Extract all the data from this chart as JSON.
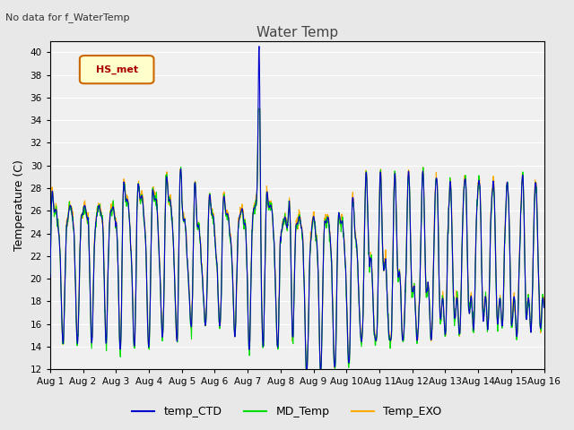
{
  "title": "Water Temp",
  "subtitle": "No data for f_WaterTemp",
  "ylabel": "Temperature (C)",
  "ylim": [
    12,
    41
  ],
  "yticks": [
    12,
    14,
    16,
    18,
    20,
    22,
    24,
    26,
    28,
    30,
    32,
    34,
    36,
    38,
    40
  ],
  "xlabel_dates": [
    "Aug 1",
    "Aug 2",
    "Aug 3",
    "Aug 4",
    "Aug 5",
    "Aug 6",
    "Aug 7",
    "Aug 8",
    "Aug 9",
    "Aug 10",
    "Aug 11",
    "Aug 12",
    "Aug 13",
    "Aug 14",
    "Aug 15",
    "Aug 16"
  ],
  "colors": {
    "temp_CTD": "#0000cc",
    "MD_Temp": "#00dd00",
    "Temp_EXO": "#ffaa00"
  },
  "legend_label": "HS_met",
  "legend_facecolor": "#ffffcc",
  "legend_edgecolor": "#cc6600",
  "legend_textcolor": "#aa0000",
  "plot_bg": "#f0f0f0",
  "grid_color": "#ffffff",
  "fig_bg": "#e8e8e8"
}
